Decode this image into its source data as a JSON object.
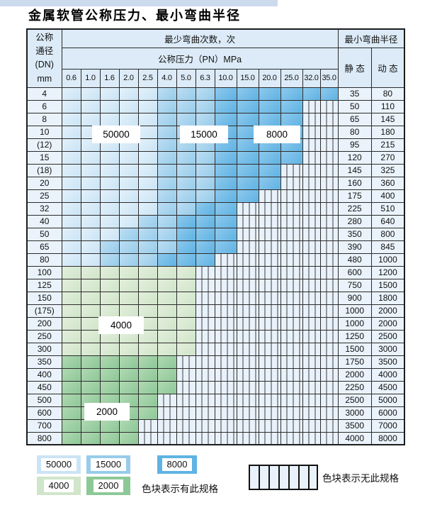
{
  "page": {
    "title": "金属软管公称压力、最小弯曲半径"
  },
  "table": {
    "header": {
      "dn_lines": [
        "公称",
        "通径",
        "(DN)",
        "mm"
      ],
      "cycles_label": "最少弯曲次数，次",
      "pn_label": "公称压力（PN）MPa",
      "radius_label": "最小弯曲半径",
      "static_label": "静 态",
      "dynamic_label": "动 态",
      "pressures": [
        "0.6",
        "1.0",
        "1.6",
        "2.0",
        "2.5",
        "4.0",
        "5.0",
        "6.3",
        "10.0",
        "15.0",
        "20.0",
        "25.0",
        "32.0",
        "35.0"
      ]
    },
    "zone_codes": {
      "L": "50000 cycles (light blue)",
      "M": "15000 cycles (medium blue)",
      "D": "8000 cycles (dark blue)",
      "g": "4000 cycles (light green)",
      "G": "2000 cycles (green)",
      "x": "no specification (hatched)"
    },
    "rows": [
      {
        "dn": "4",
        "cells": "LLLLLMMMDDDDDD",
        "static": "35",
        "dynamic": "80"
      },
      {
        "dn": "6",
        "cells": "LLLLLMMMDDDDxx",
        "static": "50",
        "dynamic": "110"
      },
      {
        "dn": "8",
        "cells": "LLLLLMMMDDDDxx",
        "static": "65",
        "dynamic": "145"
      },
      {
        "dn": "10",
        "cells": "LLLLLMMMDDDDxx",
        "static": "80",
        "dynamic": "180"
      },
      {
        "dn": "(12)",
        "cells": "LLLLLMMMDDDDxx",
        "static": "95",
        "dynamic": "215"
      },
      {
        "dn": "15",
        "cells": "LLLLLMMMDDDDxx",
        "static": "120",
        "dynamic": "270"
      },
      {
        "dn": "(18)",
        "cells": "LLLLLMMMDDDxxx",
        "static": "145",
        "dynamic": "325"
      },
      {
        "dn": "20",
        "cells": "LLLLLMMMDDDxxx",
        "static": "160",
        "dynamic": "360"
      },
      {
        "dn": "25",
        "cells": "LLLLLMMMDDxxxx",
        "static": "175",
        "dynamic": "400"
      },
      {
        "dn": "32",
        "cells": "LLLLLMMDDxxxxx",
        "static": "225",
        "dynamic": "510"
      },
      {
        "dn": "40",
        "cells": "LLLLMMDDDxxxxx",
        "static": "280",
        "dynamic": "640"
      },
      {
        "dn": "50",
        "cells": "LLLMMMDDDxxxxx",
        "static": "350",
        "dynamic": "800"
      },
      {
        "dn": "65",
        "cells": "LLMMMMDDDxxxxx",
        "static": "390",
        "dynamic": "845"
      },
      {
        "dn": "80",
        "cells": "LLMMMDDDxxxxxx",
        "static": "480",
        "dynamic": "1000"
      },
      {
        "dn": "100",
        "cells": "gggggggxxxxxxx",
        "static": "600",
        "dynamic": "1200"
      },
      {
        "dn": "125",
        "cells": "gggggggxxxxxxx",
        "static": "750",
        "dynamic": "1500"
      },
      {
        "dn": "150",
        "cells": "gggggggxxxxxxx",
        "static": "900",
        "dynamic": "1800"
      },
      {
        "dn": "(175)",
        "cells": "gggggggxxxxxxx",
        "static": "1000",
        "dynamic": "2000"
      },
      {
        "dn": "200",
        "cells": "gggggggxxxxxxx",
        "static": "1000",
        "dynamic": "2000"
      },
      {
        "dn": "250",
        "cells": "gggggggxxxxxxx",
        "static": "1250",
        "dynamic": "2500"
      },
      {
        "dn": "300",
        "cells": "gggggggxxxxxxx",
        "static": "1500",
        "dynamic": "3000"
      },
      {
        "dn": "350",
        "cells": "GGGGGGxxxxxxxx",
        "static": "1750",
        "dynamic": "3500"
      },
      {
        "dn": "400",
        "cells": "GGGGGGxxxxxxxx",
        "static": "2000",
        "dynamic": "4000"
      },
      {
        "dn": "450",
        "cells": "GGGGGGxxxxxxxx",
        "static": "2250",
        "dynamic": "4500"
      },
      {
        "dn": "500",
        "cells": "GGGGGxxxxxxxxx",
        "static": "2500",
        "dynamic": "5000"
      },
      {
        "dn": "600",
        "cells": "GGGGGxxxxxxxxx",
        "static": "3000",
        "dynamic": "6000"
      },
      {
        "dn": "700",
        "cells": "GGGGxxxxxxxxxx",
        "static": "3500",
        "dynamic": "7000"
      },
      {
        "dn": "800",
        "cells": "GGGGxxxxxxxxxx",
        "static": "4000",
        "dynamic": "8000"
      }
    ]
  },
  "zone_labels": {
    "z50000": "50000",
    "z15000": "15000",
    "z8000": "8000",
    "z4000": "4000",
    "z2000": "2000"
  },
  "legend": {
    "has_spec": [
      {
        "value": "50000",
        "color": "#cbe4f5"
      },
      {
        "value": "15000",
        "color": "#97ccea"
      },
      {
        "value": "8000",
        "color": "#5fb3e3"
      },
      {
        "value": "4000",
        "color": "#d0e5c9"
      },
      {
        "value": "2000",
        "color": "#8dc897"
      }
    ],
    "has_spec_label": "色块表示有此规格",
    "no_spec_label": "色块表示无此规格"
  },
  "colors": {
    "blue_50000": "#cbe4f5",
    "blue_15000": "#97ccea",
    "blue_8000": "#5fb3e3",
    "green_4000": "#d0e5c9",
    "green_2000": "#8dc897",
    "hatch_bg": "#e9f2fb",
    "header_bg": "#dcebf7",
    "label_col_bg": "#eaf3fb",
    "border": "#2b2b2b",
    "top_strip": "#ccdaee"
  }
}
